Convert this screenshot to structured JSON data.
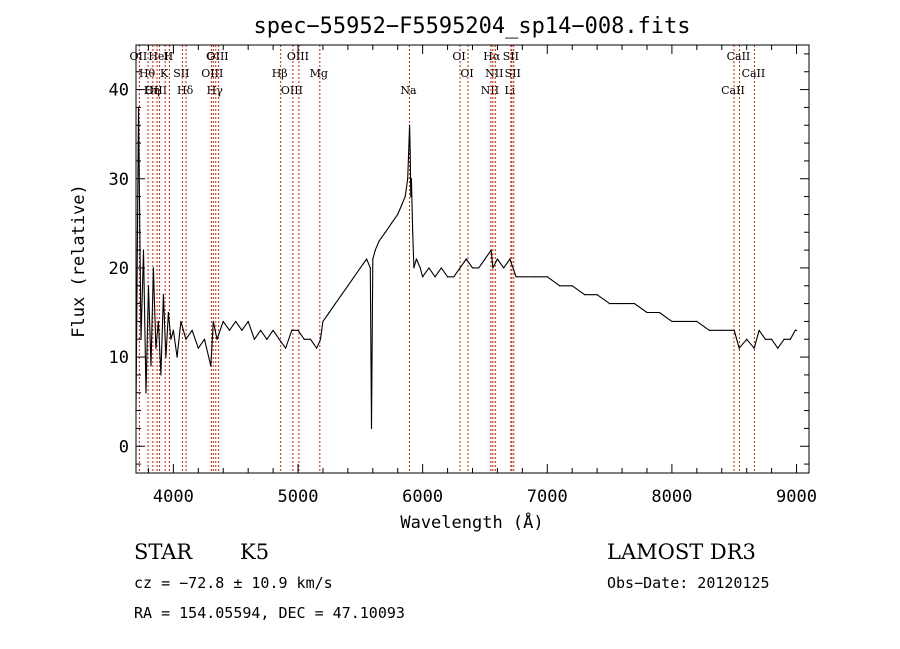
{
  "chart_data": {
    "type": "line",
    "title": "spec−55952−F5595204_sp14−008.fits",
    "xlabel": "Wavelength (Å)",
    "ylabel": "Flux (relative)",
    "xlim": [
      3700,
      9100
    ],
    "ylim": [
      -3,
      45
    ],
    "xticks": [
      4000,
      5000,
      6000,
      7000,
      8000,
      9000
    ],
    "yticks": [
      0,
      10,
      20,
      30,
      40
    ],
    "grid": false,
    "series": [
      {
        "name": "spectrum",
        "x": [
          3700,
          3720,
          3740,
          3760,
          3780,
          3800,
          3820,
          3840,
          3860,
          3880,
          3900,
          3920,
          3940,
          3960,
          3980,
          4000,
          4030,
          4060,
          4100,
          4150,
          4200,
          4250,
          4300,
          4320,
          4350,
          4400,
          4450,
          4500,
          4550,
          4600,
          4650,
          4700,
          4750,
          4800,
          4850,
          4900,
          4950,
          5000,
          5050,
          5100,
          5150,
          5180,
          5200,
          5250,
          5300,
          5350,
          5400,
          5450,
          5500,
          5550,
          5580,
          5590,
          5600,
          5620,
          5650,
          5700,
          5750,
          5800,
          5830,
          5860,
          5880,
          5895,
          5900,
          5905,
          5910,
          5920,
          5930,
          5950,
          5980,
          6000,
          6050,
          6100,
          6150,
          6200,
          6250,
          6300,
          6350,
          6400,
          6450,
          6500,
          6550,
          6563,
          6600,
          6650,
          6700,
          6750,
          6800,
          6900,
          7000,
          7100,
          7200,
          7300,
          7400,
          7500,
          7600,
          7700,
          7800,
          7900,
          8000,
          8100,
          8200,
          8300,
          8400,
          8500,
          8540,
          8600,
          8660,
          8700,
          8750,
          8800,
          8850,
          8900,
          8950,
          8990,
          9000
        ],
        "values": [
          4,
          38,
          12,
          22,
          6,
          18,
          9,
          20,
          11,
          14,
          8,
          17,
          10,
          15,
          12,
          13,
          10,
          14,
          12,
          13,
          11,
          12,
          9,
          14,
          12,
          14,
          13,
          14,
          13,
          14,
          12,
          13,
          12,
          13,
          12,
          11,
          13,
          13,
          12,
          12,
          11,
          12,
          14,
          15,
          16,
          17,
          18,
          19,
          20,
          21,
          20,
          2,
          21,
          22,
          23,
          24,
          25,
          26,
          27,
          28,
          30,
          36,
          33,
          28,
          30,
          24,
          20,
          21,
          20,
          19,
          20,
          19,
          20,
          19,
          19,
          20,
          21,
          20,
          20,
          21,
          22,
          20,
          21,
          20,
          21,
          19,
          19,
          19,
          19,
          18,
          18,
          17,
          17,
          16,
          16,
          16,
          15,
          15,
          14,
          14,
          14,
          13,
          13,
          13,
          11,
          12,
          11,
          13,
          12,
          12,
          11,
          12,
          12,
          13,
          13
        ]
      }
    ],
    "line_markers": [
      {
        "label": "OII",
        "wavelength": 3727
      },
      {
        "label": "Hθ",
        "wavelength": 3797
      },
      {
        "label": "OIII",
        "wavelength": 3869
      },
      {
        "label": "HeI",
        "wavelength": 3889
      },
      {
        "label": "K",
        "wavelength": 3934
      },
      {
        "label": "Hη",
        "wavelength": 3835
      },
      {
        "label": "H",
        "wavelength": 3968
      },
      {
        "label": "SII",
        "wavelength": 4072
      },
      {
        "label": "Hδ",
        "wavelength": 4102
      },
      {
        "label": "G",
        "wavelength": 4305
      },
      {
        "label": "OIII",
        "wavelength": 4320
      },
      {
        "label": "Hγ",
        "wavelength": 4340
      },
      {
        "label": "OIII",
        "wavelength": 4363
      },
      {
        "label": "Hβ",
        "wavelength": 4861
      },
      {
        "label": "OIII",
        "wavelength": 4959
      },
      {
        "label": "OIII",
        "wavelength": 5007
      },
      {
        "label": "Mg",
        "wavelength": 5175
      },
      {
        "label": "Na",
        "wavelength": 5894
      },
      {
        "label": "OI",
        "wavelength": 6300
      },
      {
        "label": "OI",
        "wavelength": 6364
      },
      {
        "label": "NII",
        "wavelength": 6548
      },
      {
        "label": "Hα",
        "wavelength": 6563
      },
      {
        "label": "NII",
        "wavelength": 6583
      },
      {
        "label": "Li",
        "wavelength": 6708
      },
      {
        "label": "SII",
        "wavelength": 6716
      },
      {
        "label": "SII",
        "wavelength": 6731
      },
      {
        "label": "CaII",
        "wavelength": 8498
      },
      {
        "label": "CaII",
        "wavelength": 8542
      },
      {
        "label": "CaII",
        "wavelength": 8662
      }
    ],
    "colors": {
      "spectrum": "#000000",
      "marker": "#cc2200",
      "axes": "#000000"
    }
  },
  "info": {
    "object_class": "STAR",
    "subclass": "K5",
    "survey": "LAMOST DR3",
    "cz": "cz = −72.8 ± 10.9 km/s",
    "obs_date": "Obs−Date: 20120125",
    "radec": "RA = 154.05594, DEC =  47.10093"
  }
}
